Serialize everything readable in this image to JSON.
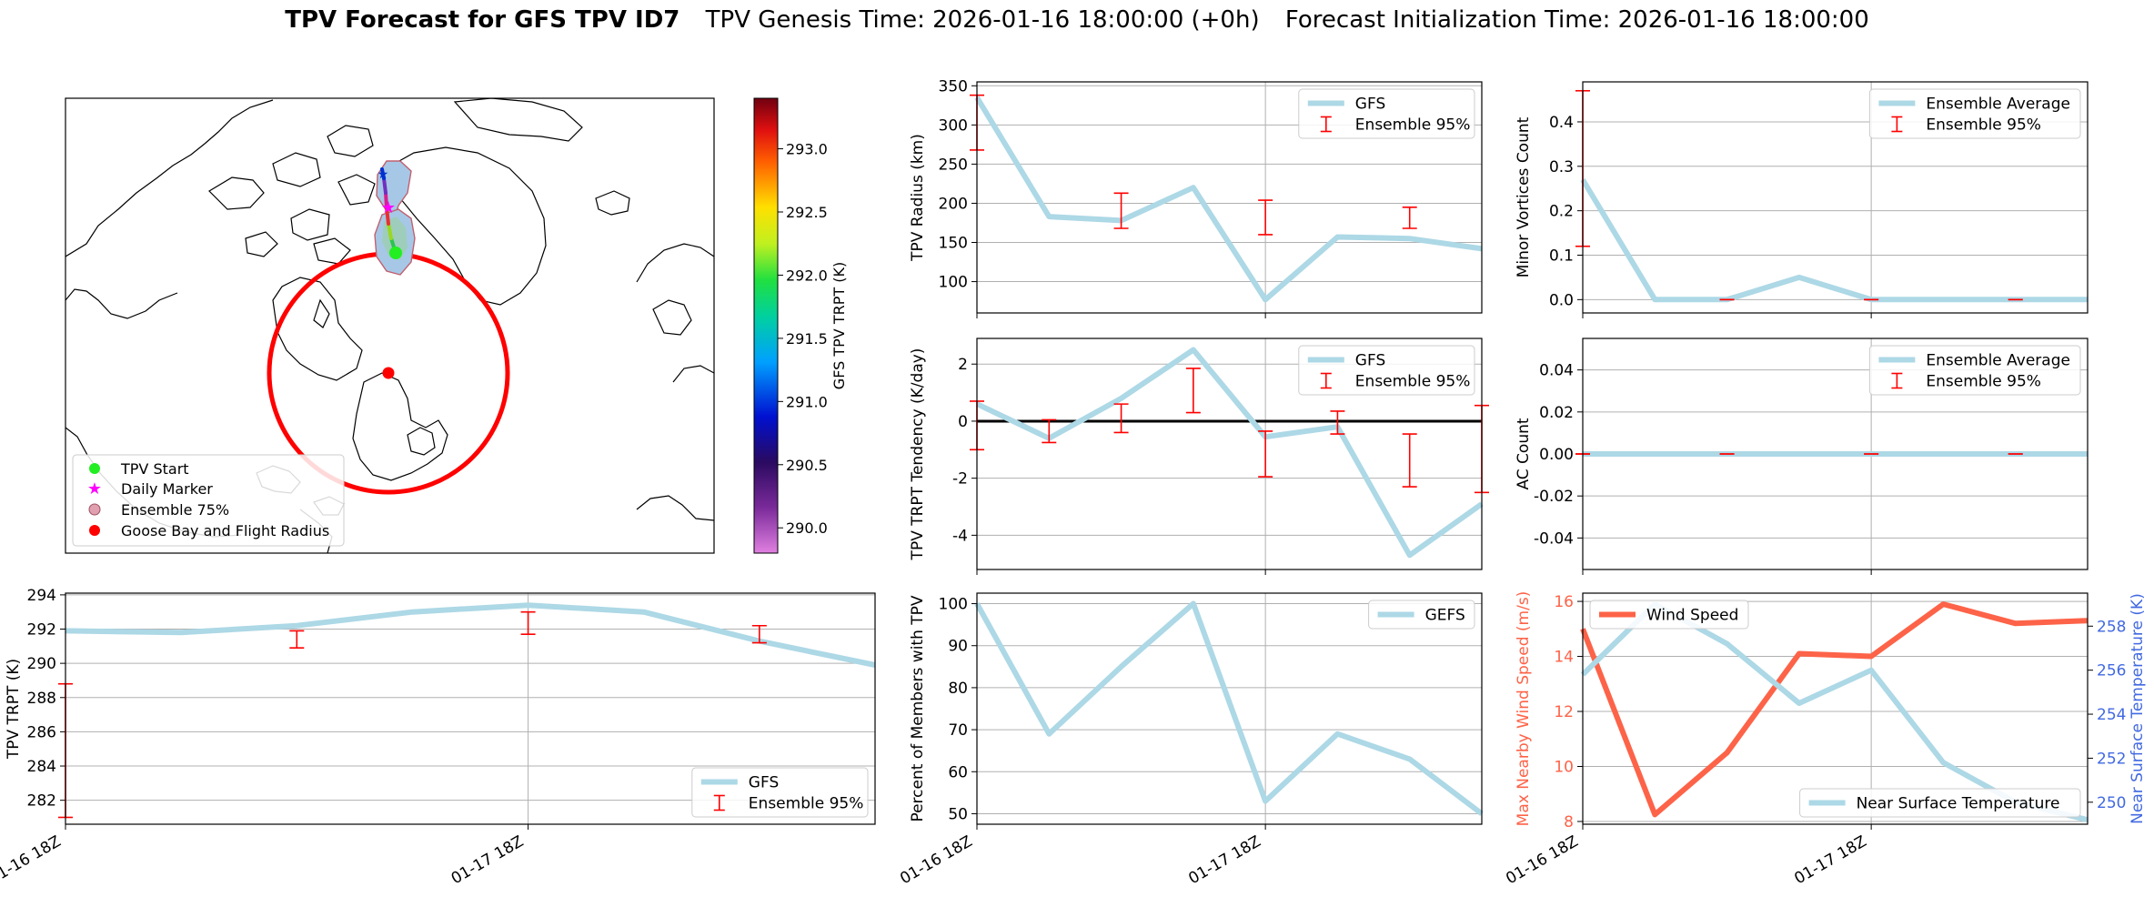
{
  "header": {
    "title_bold": "TPV Forecast for GFS TPV ID7",
    "genesis": "TPV Genesis Time: 2026-01-16 18:00:00 (+0h)",
    "init": "Forecast Initialization Time: 2026-01-16 18:00:00"
  },
  "colors": {
    "line": "#add8e6",
    "errorbar": "#ff0000",
    "wind": "#fd6348",
    "temp_axis": "#4169e1",
    "track_start": "#22ee22",
    "daily_marker": "#ff00ff",
    "goose_bay": "#ff0000",
    "ensemble_fill": "#a6c8e6",
    "ensemble_edge": "#c06070"
  },
  "time_ticks": [
    "01-16 18Z",
    "01-17 18Z"
  ],
  "map": {
    "legend": [
      "TPV Start",
      "Daily Marker",
      "Ensemble 75%",
      "Goose Bay and Flight Radius"
    ],
    "colorbar": {
      "label": "GFS TPV TRPT (K)",
      "ticks": [
        "290.0",
        "290.5",
        "291.0",
        "291.5",
        "292.0",
        "292.5",
        "293.0"
      ],
      "range": [
        289.8,
        293.4
      ]
    },
    "track_colors": [
      "#2ac44f",
      "#9ad820",
      "#e83030",
      "#d82090",
      "#7030c0",
      "#0030d0"
    ]
  },
  "chart_data": [
    {
      "id": "radius",
      "type": "line",
      "ylabel": "TPV Radius (km)",
      "x": [
        0,
        1,
        2,
        3,
        4,
        5,
        6,
        7
      ],
      "series": [
        {
          "name": "GFS",
          "values": [
            335,
            183,
            178,
            220,
            77,
            157,
            155,
            142
          ]
        }
      ],
      "errorbars": [
        {
          "x": 0,
          "low": 268,
          "high": 338
        },
        {
          "x": 2,
          "low": 168,
          "high": 213
        },
        {
          "x": 4,
          "low": 160,
          "high": 204
        },
        {
          "x": 6,
          "low": 168,
          "high": 195
        }
      ],
      "errorbar_name": "Ensemble 95%",
      "yticks": [
        "100",
        "150",
        "200",
        "250",
        "300",
        "350"
      ],
      "ylim": [
        60,
        355
      ],
      "legend": "top-right"
    },
    {
      "id": "minor",
      "type": "line",
      "ylabel": "Minor Vortices Count",
      "x": [
        0,
        1,
        2,
        3,
        4,
        5,
        6,
        7
      ],
      "series": [
        {
          "name": "Ensemble Average",
          "values": [
            0.27,
            0,
            0,
            0.05,
            0,
            0,
            0,
            0
          ]
        }
      ],
      "errorbars": [
        {
          "x": 0,
          "low": 0.12,
          "high": 0.47
        },
        {
          "x": 2,
          "low": 0,
          "high": 0
        },
        {
          "x": 4,
          "low": 0,
          "high": 0
        },
        {
          "x": 6,
          "low": 0,
          "high": 0
        }
      ],
      "errorbar_name": "Ensemble 95%",
      "yticks": [
        "0.0",
        "0.1",
        "0.2",
        "0.3",
        "0.4"
      ],
      "ylim": [
        -0.03,
        0.49
      ],
      "legend": "top-right"
    },
    {
      "id": "tendency",
      "type": "line",
      "ylabel": "TPV TRPT Tendency (K/day)",
      "x": [
        0,
        1,
        2,
        3,
        4,
        5,
        6,
        7
      ],
      "series": [
        {
          "name": "GFS",
          "values": [
            0.6,
            -0.6,
            0.8,
            2.5,
            -0.55,
            -0.2,
            -4.7,
            -2.9
          ]
        }
      ],
      "errorbars": [
        {
          "x": 0,
          "low": -1.0,
          "high": 0.7
        },
        {
          "x": 1,
          "low": -0.75,
          "high": 0.05
        },
        {
          "x": 2,
          "low": -0.4,
          "high": 0.6
        },
        {
          "x": 3,
          "low": 0.3,
          "high": 1.85
        },
        {
          "x": 4,
          "low": -1.95,
          "high": -0.35
        },
        {
          "x": 5,
          "low": -0.45,
          "high": 0.35
        },
        {
          "x": 6,
          "low": -2.3,
          "high": -0.45
        },
        {
          "x": 7,
          "low": -2.5,
          "high": 0.55
        }
      ],
      "errorbar_name": "Ensemble 95%",
      "zero_line": true,
      "yticks": [
        "-4",
        "-2",
        "0",
        "2"
      ],
      "ylim": [
        -5.2,
        2.9
      ],
      "legend": "top-right"
    },
    {
      "id": "ac",
      "type": "line",
      "ylabel": "AC Count",
      "x": [
        0,
        1,
        2,
        3,
        4,
        5,
        6,
        7
      ],
      "series": [
        {
          "name": "Ensemble Average",
          "values": [
            0,
            0,
            0,
            0,
            0,
            0,
            0,
            0
          ]
        }
      ],
      "errorbars": [
        {
          "x": 0,
          "low": 0,
          "high": 0
        },
        {
          "x": 2,
          "low": 0,
          "high": 0
        },
        {
          "x": 4,
          "low": 0,
          "high": 0
        },
        {
          "x": 6,
          "low": 0,
          "high": 0
        }
      ],
      "errorbar_name": "Ensemble 95%",
      "yticks": [
        "-0.04",
        "-0.02",
        "0.00",
        "0.02",
        "0.04"
      ],
      "ylim": [
        -0.055,
        0.055
      ],
      "legend": "top-right"
    },
    {
      "id": "trpt",
      "type": "line",
      "ylabel": "TPV TRPT (K)",
      "x": [
        0,
        1,
        2,
        3,
        4,
        5,
        6,
        7
      ],
      "series": [
        {
          "name": "GFS",
          "values": [
            291.9,
            291.8,
            292.2,
            293.0,
            293.4,
            293.0,
            291.3,
            289.9
          ]
        }
      ],
      "errorbars": [
        {
          "x": 0,
          "low": 281.0,
          "high": 288.8
        },
        {
          "x": 2,
          "low": 290.9,
          "high": 291.9
        },
        {
          "x": 4,
          "low": 291.7,
          "high": 293.0
        },
        {
          "x": 6,
          "low": 291.2,
          "high": 292.2
        }
      ],
      "errorbar_name": "Ensemble 95%",
      "yticks": [
        "282",
        "284",
        "286",
        "288",
        "290",
        "292",
        "294"
      ],
      "ylim": [
        280.6,
        294.1
      ],
      "legend": "bottom-right"
    },
    {
      "id": "members",
      "type": "line",
      "ylabel": "Percent of Members with TPV",
      "x": [
        0,
        1,
        2,
        3,
        4,
        5,
        6,
        7
      ],
      "series": [
        {
          "name": "GEFS",
          "values": [
            100,
            69,
            85,
            100,
            53,
            69,
            63,
            50
          ]
        }
      ],
      "yticks": [
        "50",
        "60",
        "70",
        "80",
        "90",
        "100"
      ],
      "ylim": [
        47.5,
        102.5
      ],
      "legend": "top-right"
    },
    {
      "id": "wind",
      "type": "line",
      "ylabel": "Max Nearby Wind Speed (m/s)",
      "y2label": "Near Surface Temperature (K)",
      "x": [
        0,
        1,
        2,
        3,
        4,
        5,
        6,
        7
      ],
      "series": [
        {
          "name": "Wind Speed",
          "axis": "left",
          "values": [
            15.0,
            8.25,
            10.5,
            14.1,
            14.0,
            15.9,
            15.2,
            15.3
          ]
        },
        {
          "name": "Near Surface Temperature",
          "axis": "right",
          "values": [
            255.8,
            259.0,
            257.2,
            254.5,
            256.0,
            251.8,
            250.0,
            249.2
          ]
        }
      ],
      "yticks": [
        "8",
        "10",
        "12",
        "14",
        "16"
      ],
      "y2ticks": [
        "250",
        "252",
        "254",
        "256",
        "258"
      ],
      "ylim": [
        7.9,
        16.3
      ],
      "y2lim": [
        249.0,
        259.5
      ],
      "legend": "top-left"
    }
  ]
}
